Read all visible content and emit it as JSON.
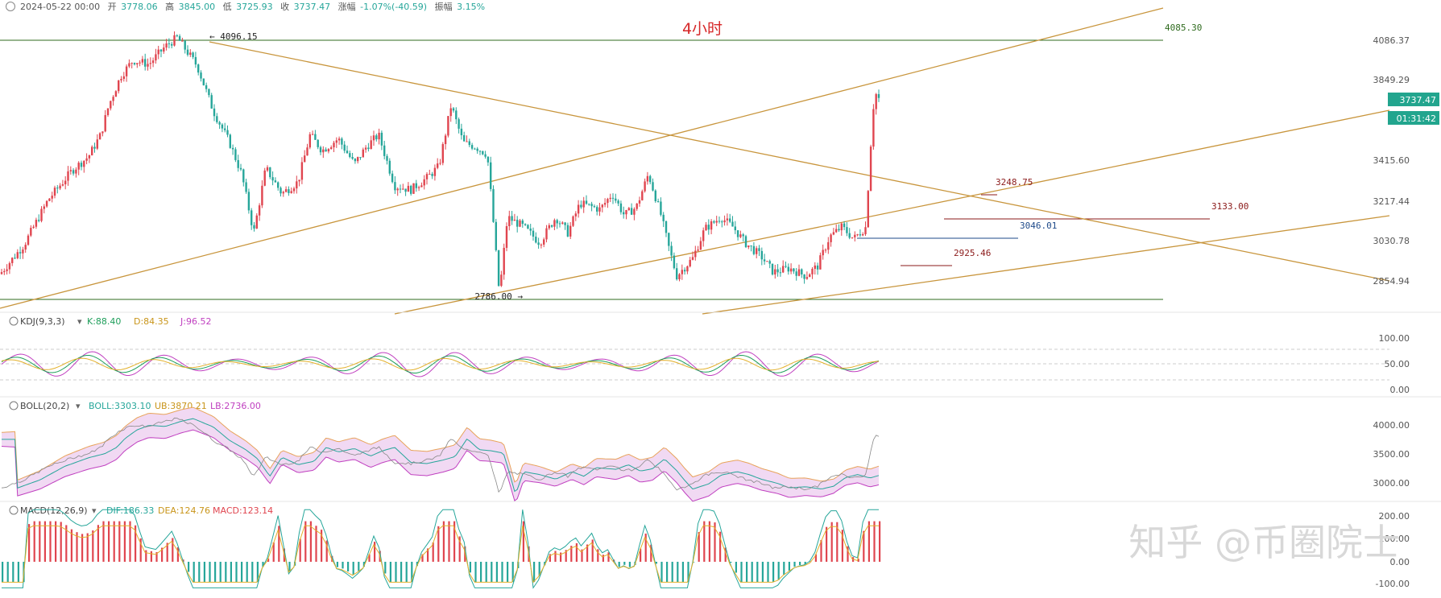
{
  "header": {
    "datetime": "2024-05-22 00:00",
    "open_label": "开",
    "open": "3778.06",
    "high_label": "高",
    "high": "3845.00",
    "low_label": "低",
    "low": "3725.93",
    "close_label": "收",
    "close": "3737.47",
    "change_label": "涨幅",
    "change": "-1.07%(-40.59)",
    "amp_label": "振幅",
    "amp": "3.15%"
  },
  "title": "4小时",
  "price_axis": {
    "ticks": [
      "4086.37",
      "3849.29",
      "3415.60",
      "3217.44",
      "3030.78",
      "2854.94"
    ],
    "current_price": "3737.47",
    "countdown": "01:31:42"
  },
  "annotations": [
    {
      "text": "← 4096.15"
    },
    {
      "text": "4085.30"
    },
    {
      "text": "3248.75"
    },
    {
      "text": "3133.00"
    },
    {
      "text": "3046.01"
    },
    {
      "text": "2925.46"
    },
    {
      "text": "2786.00 →"
    }
  ],
  "indicators": {
    "kdj": {
      "label": "KDJ(9,3,3)",
      "k": "K:88.40",
      "d": "D:84.35",
      "j": "J:96.52",
      "ticks": [
        "100.00",
        "50.00",
        "0.00"
      ]
    },
    "boll": {
      "label": "BOLL(20,2)",
      "mid": "BOLL:3303.10",
      "ub": "UB:3870.21",
      "lb": "LB:2736.00",
      "ticks": [
        "4000.00",
        "3500.00",
        "3000.00"
      ]
    },
    "macd": {
      "label": "MACD(12,26,9)",
      "dif": "DIF:186.33",
      "dea": "DEA:124.76",
      "macd": "MACD:123.14",
      "ticks": [
        "200.00",
        "100.00",
        "0.00",
        "-100.00"
      ]
    }
  },
  "watermark": "知乎 @币圈院士",
  "colors": {
    "up": "#e0454f",
    "down": "#26a69a",
    "trend": "#c8953c",
    "hline": "#2f6b1e",
    "blue_label": "#1e4a8a",
    "red_label": "#8b1a1a",
    "title": "#d62728",
    "k": "#1e9e5a",
    "d": "#e3b02a",
    "j": "#c040c0"
  },
  "chart_data": {
    "type": "candlestick",
    "title": "4小时",
    "ohlc_last": {
      "open": 3778.06,
      "high": 3845.0,
      "low": 3725.93,
      "close": 3737.47
    },
    "key_points": [
      {
        "label": "high",
        "value": 4096.15
      },
      {
        "label": "low",
        "value": 2786.0
      },
      {
        "label": "last",
        "value": 3737.47
      }
    ],
    "path_points": [
      [
        0,
        2890
      ],
      [
        30,
        3040
      ],
      [
        60,
        3270
      ],
      [
        90,
        3420
      ],
      [
        110,
        3490
      ],
      [
        125,
        3600
      ],
      [
        135,
        3750
      ],
      [
        150,
        3900
      ],
      [
        165,
        3980
      ],
      [
        185,
        3960
      ],
      [
        205,
        4050
      ],
      [
        220,
        4096.15
      ],
      [
        245,
        3950
      ],
      [
        265,
        3720
      ],
      [
        285,
        3560
      ],
      [
        300,
        3400
      ],
      [
        315,
        3100
      ],
      [
        330,
        3430
      ],
      [
        350,
        3300
      ],
      [
        370,
        3360
      ],
      [
        385,
        3600
      ],
      [
        400,
        3520
      ],
      [
        420,
        3580
      ],
      [
        440,
        3450
      ],
      [
        455,
        3540
      ],
      [
        470,
        3600
      ],
      [
        490,
        3340
      ],
      [
        510,
        3320
      ],
      [
        530,
        3380
      ],
      [
        545,
        3440
      ],
      [
        560,
        3750
      ],
      [
        575,
        3560
      ],
      [
        590,
        3540
      ],
      [
        605,
        3500
      ],
      [
        612,
        3180
      ],
      [
        620,
        2786
      ],
      [
        630,
        3180
      ],
      [
        650,
        3130
      ],
      [
        670,
        3050
      ],
      [
        690,
        3180
      ],
      [
        705,
        3100
      ],
      [
        720,
        3250
      ],
      [
        745,
        3220
      ],
      [
        760,
        3300
      ],
      [
        775,
        3190
      ],
      [
        790,
        3230
      ],
      [
        805,
        3400
      ],
      [
        820,
        3200
      ],
      [
        830,
        3030
      ],
      [
        840,
        2880
      ],
      [
        860,
        2970
      ],
      [
        875,
        3120
      ],
      [
        895,
        3180
      ],
      [
        910,
        3130
      ],
      [
        925,
        3050
      ],
      [
        945,
        2980
      ],
      [
        960,
        2900
      ],
      [
        980,
        2920
      ],
      [
        1000,
        2880
      ],
      [
        1015,
        2930
      ],
      [
        1030,
        3080
      ],
      [
        1045,
        3130
      ],
      [
        1060,
        3070
      ],
      [
        1075,
        3130
      ],
      [
        1080,
        3490
      ],
      [
        1085,
        3780
      ],
      [
        1090,
        3830
      ],
      [
        1092,
        3737.47
      ]
    ]
  }
}
